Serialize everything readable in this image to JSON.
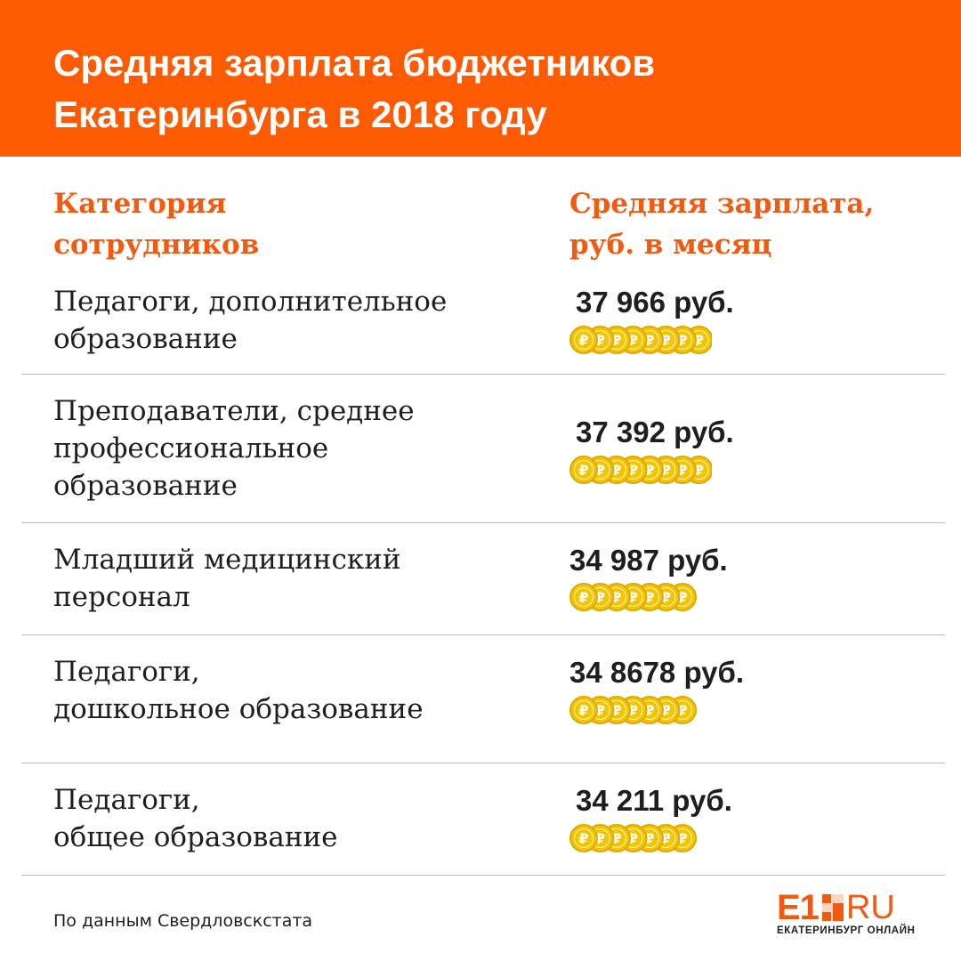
{
  "title_lines": [
    "Средняя зарплата бюджетников",
    "Екатеринбурга в 2018 году"
  ],
  "column_headers": {
    "category": [
      "Категория",
      "сотрудников"
    ],
    "salary": [
      "Средняя зарплата,",
      "руб. в месяц"
    ]
  },
  "coin_symbol": "₽",
  "colors": {
    "accent": "#fc5a03",
    "header_text": "#f15a11",
    "coin": "#f5c400",
    "coin_edge": "#e0a800",
    "text": "#1e1e1e",
    "divider": "#bdbdbd"
  },
  "chart_data": {
    "type": "table",
    "columns": [
      "Категория сотрудников",
      "Средняя зарплата, руб. в месяц"
    ],
    "rows": [
      {
        "label_lines": [
          "Педагоги, дополнительное",
          "образование"
        ],
        "value_text": "37 966 руб.",
        "coins": 8
      },
      {
        "label_lines": [
          "Преподаватели, среднее",
          "профессиональное",
          "образование"
        ],
        "value_text": "37 392 руб.",
        "coins": 8
      },
      {
        "label_lines": [
          "Младший медицинский",
          "персонал"
        ],
        "value_text": "34 987 руб.",
        "coins": 7
      },
      {
        "label_lines": [
          "Педагоги,",
          "дошкольное образование"
        ],
        "value_text": "34 8678 руб.",
        "coins": 7
      },
      {
        "label_lines": [
          "Педагоги,",
          "общее образование"
        ],
        "value_text": "34 211 руб.",
        "coins": 7
      }
    ]
  },
  "footer": {
    "source": "По данным Свердловскстата",
    "logo_main": "E1",
    "logo_suffix": "RU",
    "logo_tagline": "ЕКАТЕРИНБУРГ ОНЛАЙН"
  }
}
